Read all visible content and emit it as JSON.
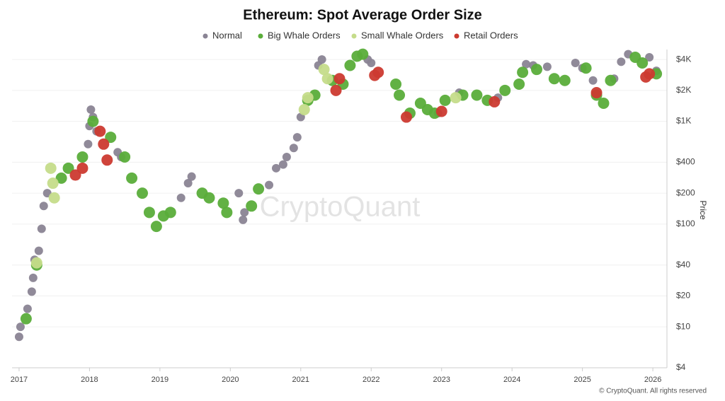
{
  "chart_data": {
    "type": "scatter",
    "title": "Ethereum: Spot Average Order Size",
    "y_label": "Price",
    "watermark": "CryptoQuant",
    "credit": "© CryptoQuant. All rights reserved",
    "log_y": true,
    "grid": true,
    "legend": "top",
    "xlim": [
      2016.9,
      2026.2
    ],
    "xticks": [
      2017,
      2018,
      2019,
      2020,
      2021,
      2022,
      2023,
      2024,
      2025,
      2026
    ],
    "ylim": [
      4,
      5000
    ],
    "yticks": [
      {
        "value": 4,
        "label": "$4"
      },
      {
        "value": 10,
        "label": "$10"
      },
      {
        "value": 20,
        "label": "$20"
      },
      {
        "value": 40,
        "label": "$40"
      },
      {
        "value": 100,
        "label": "$100"
      },
      {
        "value": 200,
        "label": "$200"
      },
      {
        "value": 400,
        "label": "$400"
      },
      {
        "value": 1000,
        "label": "$1K"
      },
      {
        "value": 2000,
        "label": "$2K"
      },
      {
        "value": 4000,
        "label": "$4K"
      }
    ],
    "series": [
      {
        "name": "Normal",
        "color": "#8a8494",
        "x": [
          2017.0,
          2017.02,
          2017.12,
          2017.18,
          2017.2,
          2017.22,
          2017.28,
          2017.32,
          2017.35,
          2017.4,
          2017.98,
          2018.0,
          2018.02,
          2018.05,
          2018.1,
          2018.4,
          2018.45,
          2019.3,
          2019.4,
          2019.45,
          2020.2,
          2020.18,
          2020.12,
          2020.55,
          2020.65,
          2020.75,
          2020.8,
          2020.9,
          2020.95,
          2021.0,
          2021.25,
          2021.3,
          2021.95,
          2022.0,
          2022.95,
          2023.25,
          2023.8,
          2024.2,
          2024.3,
          2024.5,
          2024.9,
          2025.0,
          2025.15,
          2025.45,
          2025.55,
          2025.65,
          2025.95,
          2026.05
        ],
        "values": [
          8,
          10,
          15,
          22,
          30,
          45,
          55,
          90,
          150,
          200,
          600,
          900,
          1300,
          1100,
          800,
          500,
          450,
          180,
          250,
          290,
          130,
          110,
          200,
          240,
          350,
          380,
          450,
          550,
          700,
          1100,
          3500,
          4000,
          4000,
          3700,
          1200,
          1900,
          1700,
          3600,
          3500,
          3400,
          3700,
          3300,
          2500,
          2600,
          3800,
          4500,
          4200,
          3100
        ]
      },
      {
        "name": "Big Whale Orders",
        "color": "#5aad3a",
        "x": [
          2017.1,
          2017.25,
          2017.6,
          2017.7,
          2017.9,
          2018.05,
          2018.3,
          2018.5,
          2018.6,
          2018.75,
          2018.85,
          2018.95,
          2019.05,
          2019.15,
          2019.6,
          2019.7,
          2019.9,
          2019.95,
          2020.3,
          2020.4,
          2021.1,
          2021.2,
          2021.45,
          2021.6,
          2021.7,
          2021.8,
          2021.88,
          2022.35,
          2022.4,
          2022.55,
          2022.7,
          2022.8,
          2022.9,
          2023.05,
          2023.3,
          2023.5,
          2023.65,
          2023.9,
          2024.1,
          2024.15,
          2024.35,
          2024.6,
          2024.75,
          2025.05,
          2025.2,
          2025.3,
          2025.4,
          2025.75,
          2025.85,
          2026.05
        ],
        "values": [
          12,
          40,
          280,
          350,
          450,
          1000,
          700,
          450,
          280,
          200,
          130,
          95,
          120,
          130,
          200,
          180,
          160,
          130,
          150,
          220,
          1600,
          1800,
          2500,
          2300,
          3500,
          4300,
          4500,
          2300,
          1800,
          1200,
          1500,
          1300,
          1200,
          1600,
          1800,
          1800,
          1600,
          2000,
          2300,
          3000,
          3200,
          2600,
          2500,
          3300,
          1800,
          1500,
          2500,
          4200,
          3700,
          2900
        ]
      },
      {
        "name": "Small Whale Orders",
        "color": "#c5dc8a",
        "x": [
          2017.25,
          2017.45,
          2017.48,
          2017.5,
          2021.05,
          2021.1,
          2021.33,
          2021.38,
          2023.2
        ],
        "values": [
          42,
          350,
          250,
          180,
          1300,
          1700,
          3200,
          2600,
          1700
        ]
      },
      {
        "name": "Retail Orders",
        "color": "#cc3a30",
        "x": [
          2017.8,
          2017.9,
          2018.15,
          2018.2,
          2018.25,
          2021.5,
          2021.55,
          2022.05,
          2022.1,
          2022.5,
          2023.0,
          2023.75,
          2025.2,
          2025.9,
          2025.95
        ],
        "values": [
          300,
          350,
          800,
          600,
          420,
          2000,
          2600,
          2800,
          3000,
          1100,
          1250,
          1550,
          1900,
          2700,
          2900
        ]
      }
    ]
  }
}
